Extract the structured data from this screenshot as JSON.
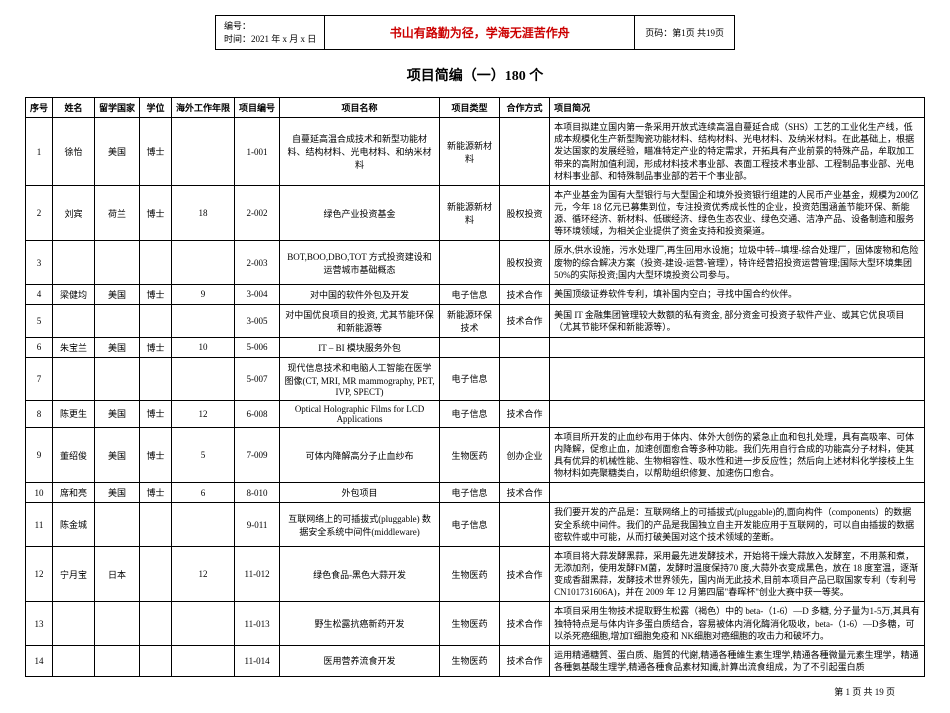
{
  "header": {
    "bianhao": "编号：",
    "time": "时间：2021 年 x 月 x 日",
    "motto": "书山有路勤为径，学海无涯苦作舟",
    "page": "页码：第1页 共19页"
  },
  "title": "项目简编（一）180 个",
  "columns": [
    "序号",
    "姓名",
    "留学国家",
    "学位",
    "海外工作年限",
    "项目编号",
    "项目名称",
    "项目类型",
    "合作方式",
    "项目简况"
  ],
  "rows": [
    {
      "seq": "1",
      "name": "徐怡",
      "country": "美国",
      "degree": "博士",
      "years": "",
      "code": "1-001",
      "pname": "自蔓延高温合成技术和新型功能材料、结构材料、光电材料、和纳米材料",
      "ptype": "新能源新材料",
      "coop": "",
      "desc": "本项目拟建立国内第一条采用开放式连续高温自蔓延合成（SHS）工艺的工业化生产线，低成本规模化生产新型陶瓷功能材料、结构材料、光电材料、及纳米材料。在此基础上，根据发达国家的发展经验，瞄准特定产业的特定需求，开拓具有产业前景的特殊产品，牟取加工带来的高附加值利润，形成材料技术事业部、表面工程技术事业部、工程制品事业部、光电材料事业部、和特殊制品事业部的若干个事业部。"
    },
    {
      "seq": "2",
      "name": "刘宾",
      "country": "荷兰",
      "degree": "博士",
      "years": "18",
      "code": "2-002",
      "pname": "绿色产业投资基金",
      "ptype": "新能源新材料",
      "coop": "股权投资",
      "desc": "本产业基金为国有大型银行与大型国企和境外投资银行组建的人民币产业基金，规模为200亿元，今年 18 亿元已募集到位，专注投资优秀成长性的企业，投资范围涵盖节能环保、新能源、循环经济、新材料、低碳经济、绿色生态农业、绿色交通、洁净产品、设备制造和服务等环境领域，为相关企业提供了资金支持和投资渠道。"
    },
    {
      "seq": "3",
      "name": "",
      "country": "",
      "degree": "",
      "years": "",
      "code": "2-003",
      "pname": "BOT,BOO,DBO,TOT 方式投资建设和运营城市基础概态",
      "ptype": "",
      "coop": "股权投资",
      "desc": "原水,供水设施，污水处理厂,再生回用水设施；垃圾中转--填埋-综合处理厂，固体废物和危险废物的综合解决方案（投资-建设-运营-管理），特许经营招投资运营管理;国际大型环境集团50%的实际投资;国内大型环境投资公司参与。"
    },
    {
      "seq": "4",
      "name": "梁健均",
      "country": "美国",
      "degree": "博士",
      "years": "9",
      "code": "3-004",
      "pname": "对中国的软件外包及开发",
      "ptype": "电子信息",
      "coop": "技术合作",
      "desc": "美国顶级证券软件专利，填补国内空白；寻找中国合约伙伴。"
    },
    {
      "seq": "5",
      "name": "",
      "country": "",
      "degree": "",
      "years": "",
      "code": "3-005",
      "pname": "对中国优良项目的投资, 尤其节能环保和新能源等",
      "ptype": "新能源环保技术",
      "coop": "技术合作",
      "desc": "美国 IT 金融集团管理较大数额的私有资金, 部分资金可投资子软件产业、或其它优良项目（尤其节能环保和新能源等）。"
    },
    {
      "seq": "6",
      "name": "朱宝兰",
      "country": "美国",
      "degree": "博士",
      "years": "10",
      "code": "5-006",
      "pname": "IT – BI 模块服务外包",
      "ptype": "",
      "coop": "",
      "desc": ""
    },
    {
      "seq": "7",
      "name": "",
      "country": "",
      "degree": "",
      "years": "",
      "code": "5-007",
      "pname": "现代信息技术和电脑人工智能在医学图像(CT, MRI, MR mammography, PET, IVP, SPECT)",
      "ptype": "电子信息",
      "coop": "",
      "desc": ""
    },
    {
      "seq": "8",
      "name": "陈更生",
      "country": "美国",
      "degree": "博士",
      "years": "12",
      "code": "6-008",
      "pname": "Optical Holographic Films for LCD Applications",
      "ptype": "电子信息",
      "coop": "技术合作",
      "desc": ""
    },
    {
      "seq": "9",
      "name": "董绍俊",
      "country": "美国",
      "degree": "博士",
      "years": "5",
      "code": "7-009",
      "pname": "可体内降解高分子止血纱布",
      "ptype": "生物医药",
      "coop": "创办企业",
      "desc": "本项目所开发的止血纱布用于体内、体外大创伤的紧急止血和包扎处理，具有高吸率、可体内降解，促愈止血，加速创面愈合等多种功能。我们先用自行合成的功能高分子材料，使其具有优异的机械性能、生物相容性、吸水性和进一步反应性；然后向上述材料化学接枝上生物材料如壳聚糖类白，以帮助组织修复、加速伤口愈合。"
    },
    {
      "seq": "10",
      "name": "席和亮",
      "country": "美国",
      "degree": "博士",
      "years": "6",
      "code": "8-010",
      "pname": "外包项目",
      "ptype": "电子信息",
      "coop": "技术合作",
      "desc": ""
    },
    {
      "seq": "11",
      "name": "陈金城",
      "country": "",
      "degree": "",
      "years": "",
      "code": "9-011",
      "pname": "互联网络上的可插拔式(pluggable) 数据安全系统中间件(middleware)",
      "ptype": "电子信息",
      "coop": "",
      "desc": "我们要开发的产品是：互联网络上的可插拔式(pluggable)的,面向构件（components）的数据安全系统中间件。我们的产品是我国独立自主开发能应用于互联网的，可以自由插拔的数据密软件或中可能，从而打破美国对这个技术领域的垄断。"
    },
    {
      "seq": "12",
      "name": "宁月宝",
      "country": "日本",
      "degree": "",
      "years": "12",
      "code": "11-012",
      "pname": "绿色食品-黑色大蒜开发",
      "ptype": "生物医药",
      "coop": "技术合作",
      "desc": "本项目将大蒜发酵黑蒜，采用最先进发酵技术，开始将干燥大蒜放入发酵室，不用蒸和煮，无添加剂，使用发酵FM菌，发酵时温度保持70 度,大蒜外衣变成黑色，放在 18 度室温，逐渐变成香甜黑蒜，发酵技术世界领先，国内尚无此技术,目前本项目产品已取国家专利（专利号 CN101731606A)，并在 2009 年 12 月第四届\"春晖杯\"创业大赛中获一等奖。"
    },
    {
      "seq": "13",
      "name": "",
      "country": "",
      "degree": "",
      "years": "",
      "code": "11-013",
      "pname": "野生松露抗癌新药开发",
      "ptype": "生物医药",
      "coop": "技术合作",
      "desc": "本项目采用生物技术提取野生松露（褐色）中的 beta-（1-6）—D 多糖, 分子量为1-5万,其具有独特特点是与体内许多蛋白质结合，容易被体内消化酶消化吸收，beta-（1-6）—D多糖，可以杀死癌细胞,增加T细胞免疫和 NK细胞对癌细胞的攻击力和破坏力。"
    },
    {
      "seq": "14",
      "name": "",
      "country": "",
      "degree": "",
      "years": "",
      "code": "11-014",
      "pname": "医用营养流食开发",
      "ptype": "生物医药",
      "coop": "技术合作",
      "desc": "运用精通糖質、蛋白质、脂質的代謝,精通各種維生素生理学,精通各種微量元素生理学，精通各種氨基酸生理学,精通各種食品素材知識,計算出流食组成，为了不引起蛋白质"
    }
  ],
  "footer": "第 1 页 共 19 页"
}
